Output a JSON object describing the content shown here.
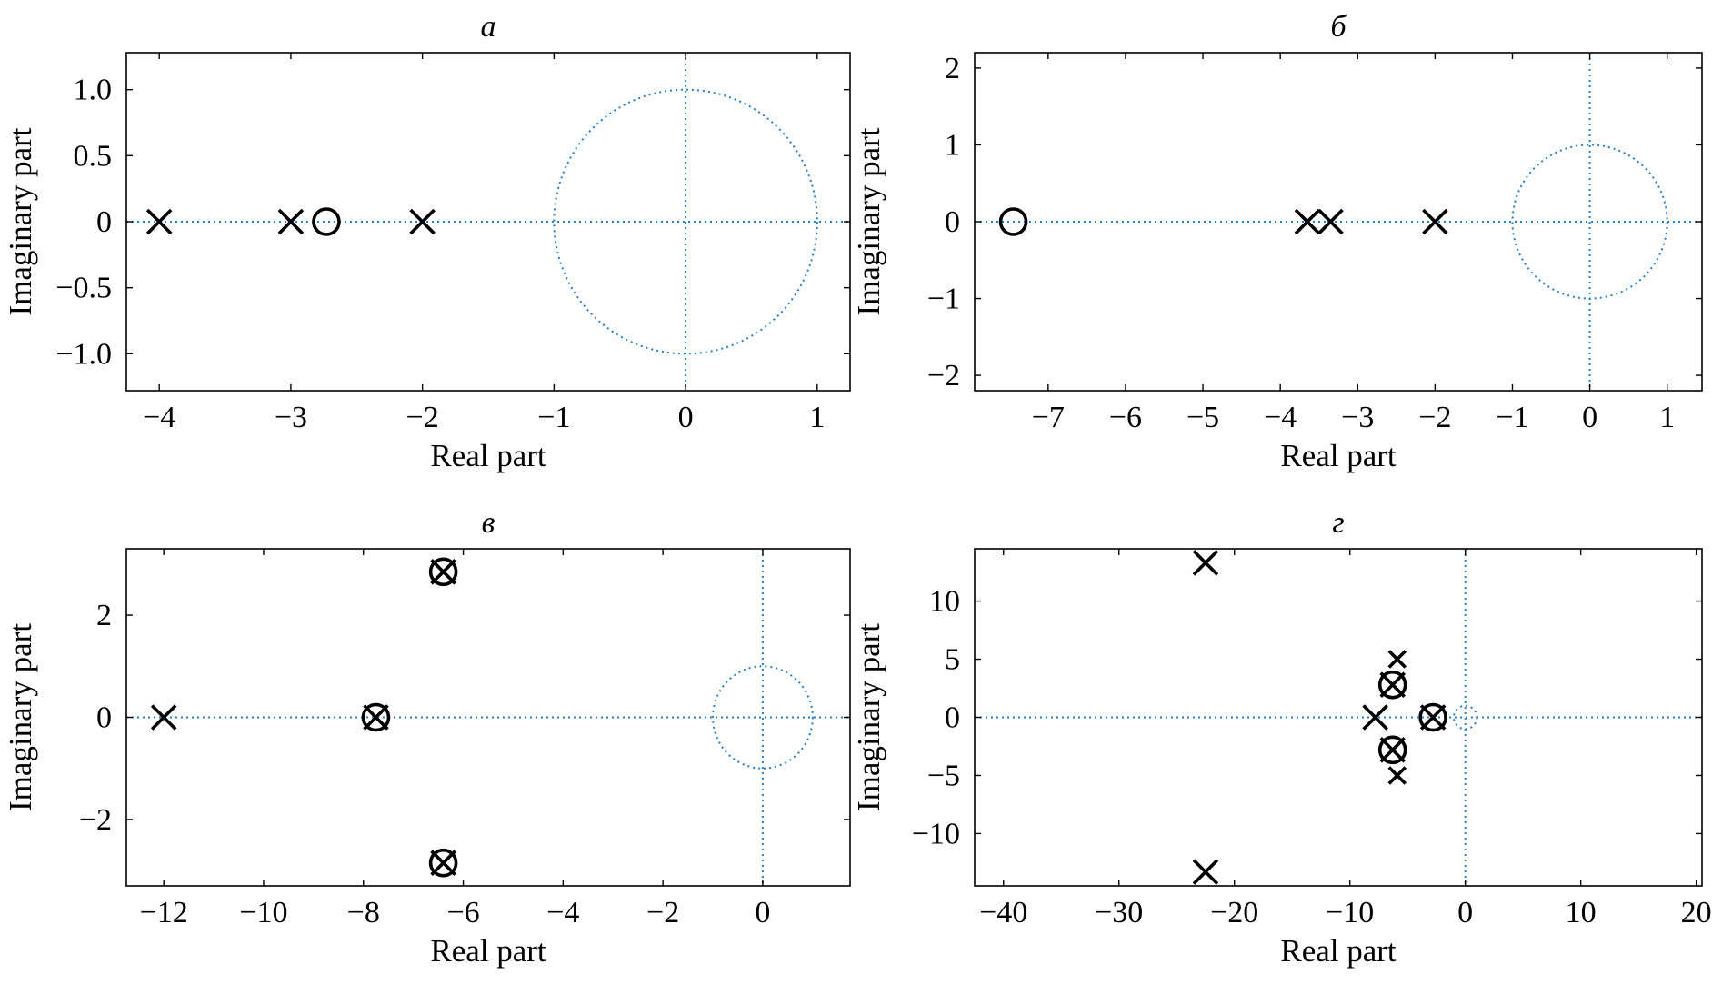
{
  "colors": {
    "guide": "#2a7fc4",
    "marker": "#000000",
    "axis": "#000000"
  },
  "chart_data": [
    {
      "type": "scatter",
      "title": "а",
      "xlabel": "Real part",
      "ylabel": "Imaginary part",
      "xlim": [
        -4.25,
        1.25
      ],
      "ylim": [
        -1.28,
        1.28
      ],
      "xticks": [
        -4,
        -3,
        -2,
        -1,
        0,
        1
      ],
      "xticklabels": [
        "−4",
        "−3",
        "−2",
        "−1",
        "0",
        "1"
      ],
      "yticks": [
        1.0,
        0.5,
        0,
        -0.5,
        -1.0
      ],
      "yticklabels": [
        "1.0",
        "0.5",
        "0",
        "−0.5",
        "−1.0"
      ],
      "unit_circle_radius": 1,
      "poles": [
        {
          "x": -4,
          "y": 0
        },
        {
          "x": -3,
          "y": 0
        },
        {
          "x": -2,
          "y": 0
        }
      ],
      "zeros": [
        {
          "x": -2.73,
          "y": 0
        }
      ]
    },
    {
      "type": "scatter",
      "title": "б",
      "xlabel": "Real part",
      "ylabel": "Imaginary part",
      "xlim": [
        -7.95,
        1.45
      ],
      "ylim": [
        -2.2,
        2.2
      ],
      "xticks": [
        -7,
        -6,
        -5,
        -4,
        -3,
        -2,
        -1,
        0,
        1
      ],
      "xticklabels": [
        "−7",
        "−6",
        "−5",
        "−4",
        "−3",
        "−2",
        "−1",
        "0",
        "1"
      ],
      "yticks": [
        2,
        1,
        0,
        -1,
        -2
      ],
      "yticklabels": [
        "2",
        "1",
        "0",
        "−1",
        "−2"
      ],
      "unit_circle_radius": 1,
      "poles": [
        {
          "x": -3.65,
          "y": 0
        },
        {
          "x": -3.35,
          "y": 0
        },
        {
          "x": -2.0,
          "y": 0
        }
      ],
      "zeros": [
        {
          "x": -7.45,
          "y": 0
        }
      ]
    },
    {
      "type": "scatter",
      "title": "в",
      "xlabel": "Real part",
      "ylabel": "Imaginary part",
      "xlim": [
        -12.75,
        1.75
      ],
      "ylim": [
        -3.3,
        3.3
      ],
      "xticks": [
        -12,
        -10,
        -8,
        -6,
        -4,
        -2,
        0
      ],
      "xticklabels": [
        "−12",
        "−10",
        "−8",
        "−6",
        "−4",
        "−2",
        "0"
      ],
      "yticks": [
        2,
        0,
        -2
      ],
      "yticklabels": [
        "2",
        "0",
        "−2"
      ],
      "unit_circle_radius": 1,
      "poles": [
        {
          "x": -12,
          "y": 0
        },
        {
          "x": -7.75,
          "y": 0
        },
        {
          "x": -6.4,
          "y": 2.85
        },
        {
          "x": -6.4,
          "y": -2.85
        }
      ],
      "zeros": [
        {
          "x": -7.75,
          "y": 0
        },
        {
          "x": -6.4,
          "y": 2.85
        },
        {
          "x": -6.4,
          "y": -2.85
        }
      ]
    },
    {
      "type": "scatter",
      "title": "г",
      "xlabel": "Real part",
      "ylabel": "Imaginary part",
      "xlim": [
        -42.5,
        20.5
      ],
      "ylim": [
        -14.5,
        14.5
      ],
      "xticks": [
        -40,
        -30,
        -20,
        -10,
        0,
        10,
        20
      ],
      "xticklabels": [
        "−40",
        "−30",
        "−20",
        "−10",
        "0",
        "10",
        "20"
      ],
      "yticks": [
        10,
        5,
        0,
        -5,
        -10
      ],
      "yticklabels": [
        "10",
        "5",
        "0",
        "−5",
        "−10"
      ],
      "unit_circle_radius": 1,
      "poles": [
        {
          "x": -22.5,
          "y": 13.3
        },
        {
          "x": -22.5,
          "y": -13.3
        },
        {
          "x": -7.8,
          "y": 0
        },
        {
          "x": -6.3,
          "y": 2.8
        },
        {
          "x": -6.3,
          "y": -2.8
        },
        {
          "x": -2.8,
          "y": 0
        },
        {
          "x": -5.9,
          "y": 5.0,
          "small": true
        },
        {
          "x": -5.9,
          "y": -5.0,
          "small": true
        }
      ],
      "zeros": [
        {
          "x": -6.3,
          "y": 2.8
        },
        {
          "x": -6.3,
          "y": -2.8
        },
        {
          "x": -2.8,
          "y": 0
        }
      ]
    }
  ]
}
